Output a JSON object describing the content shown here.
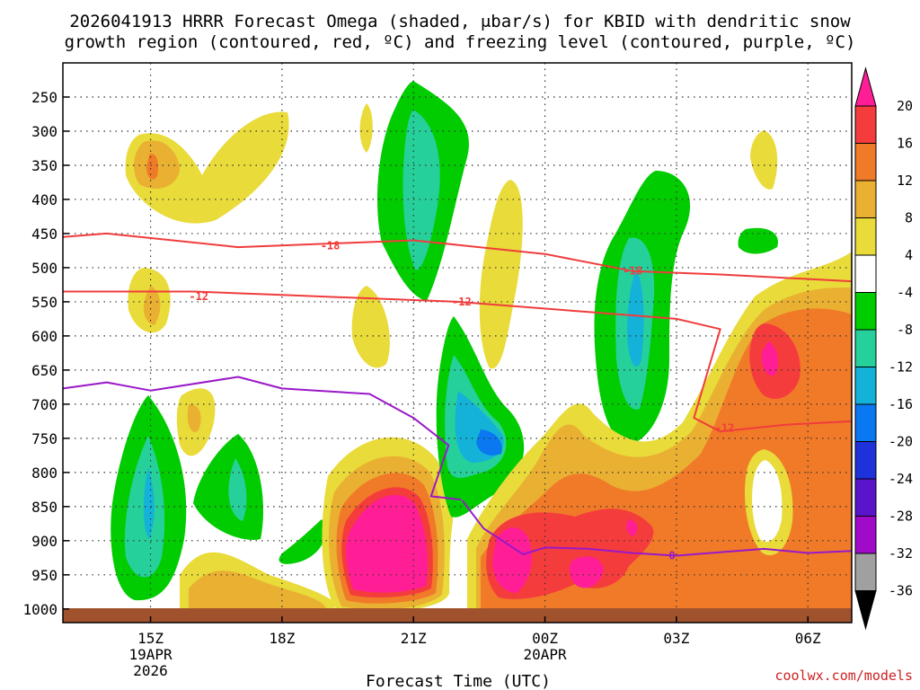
{
  "chart_data": {
    "type": "heatmap",
    "title_line1": "2026041913 HRRR Forecast Omega (shaded, μbar/s) for KBID with dendritic snow",
    "title_line2": "growth region (contoured, red, ºC) and freezing level (contoured, purple, ºC)",
    "xlabel": "Forecast Time (UTC)",
    "ylabel": "",
    "x_ticks": [
      {
        "hour": 15,
        "lines": [
          "15Z",
          "19APR",
          "2026"
        ]
      },
      {
        "hour": 18,
        "lines": [
          "18Z"
        ]
      },
      {
        "hour": 21,
        "lines": [
          "21Z"
        ]
      },
      {
        "hour": 24,
        "lines": [
          "00Z",
          "20APR"
        ]
      },
      {
        "hour": 27,
        "lines": [
          "03Z"
        ]
      },
      {
        "hour": 30,
        "lines": [
          "06Z"
        ]
      }
    ],
    "x_range_hours": [
      13,
      31
    ],
    "y_ticks": [
      250,
      300,
      350,
      400,
      450,
      500,
      550,
      600,
      650,
      700,
      750,
      800,
      850,
      900,
      950,
      1000
    ],
    "y_range_hpa": [
      200,
      1020
    ],
    "colorbar": {
      "labels": [
        "20",
        "16",
        "12",
        "8",
        "4",
        "-4",
        "-8",
        "-12",
        "-16",
        "-20",
        "-24",
        "-28",
        "-32",
        "-36"
      ],
      "colors": [
        "#ff1e96",
        "#f53c3c",
        "#f07a28",
        "#eab032",
        "#e9db3a",
        "#ffffff",
        "#00cc00",
        "#26d09a",
        "#14b2d8",
        "#0a78f0",
        "#1e32dc",
        "#5a14cc",
        "#a00ac8",
        "#a0a0a0",
        "#000000"
      ]
    },
    "contours": [
      {
        "name": "-18",
        "color": "#f03c3c",
        "points": [
          [
            13,
            455
          ],
          [
            14,
            450
          ],
          [
            17,
            470
          ],
          [
            21,
            460
          ],
          [
            24,
            480
          ],
          [
            26,
            505
          ],
          [
            28,
            510
          ],
          [
            31,
            520
          ]
        ]
      },
      {
        "name": "-12",
        "color": "#f03c3c",
        "points": [
          [
            13,
            535
          ],
          [
            16,
            535
          ],
          [
            18,
            540
          ],
          [
            22,
            550
          ],
          [
            25,
            565
          ],
          [
            27,
            575
          ],
          [
            28,
            590
          ],
          [
            27.4,
            720
          ],
          [
            28,
            740
          ],
          [
            29.5,
            730
          ],
          [
            31,
            725
          ]
        ]
      },
      {
        "name": "0",
        "color": "#9a18c8",
        "points": [
          [
            13,
            677
          ],
          [
            14,
            668
          ],
          [
            15,
            680
          ],
          [
            17,
            660
          ],
          [
            18,
            677
          ],
          [
            20,
            685
          ],
          [
            21,
            720
          ],
          [
            21.8,
            760
          ],
          [
            21.4,
            835
          ],
          [
            22.1,
            840
          ],
          [
            22.6,
            882
          ],
          [
            23.5,
            920
          ],
          [
            24,
            910
          ],
          [
            25,
            912
          ],
          [
            26,
            918
          ],
          [
            27,
            922
          ],
          [
            29,
            912
          ],
          [
            30,
            918
          ],
          [
            31,
            915
          ]
        ]
      }
    ],
    "contour_labels": [
      {
        "text": "-18",
        "hour": 19.1,
        "hpa": 468,
        "color": "#f03c3c"
      },
      {
        "text": "-18",
        "hour": 26.0,
        "hpa": 505,
        "color": "#f03c3c"
      },
      {
        "text": "-12",
        "hour": 16.1,
        "hpa": 542,
        "color": "#f03c3c"
      },
      {
        "text": "-12",
        "hour": 22.1,
        "hpa": 550,
        "color": "#f03c3c"
      },
      {
        "text": "-12",
        "hour": 28.1,
        "hpa": 735,
        "color": "#f03c3c"
      },
      {
        "text": "0",
        "hour": 26.9,
        "hpa": 922,
        "color": "#9a18c8"
      },
      {
        "text": "|",
        "hour": 22.1,
        "hpa": 835,
        "color": "#00cc00"
      }
    ]
  },
  "credit": "coolwx.com/models"
}
